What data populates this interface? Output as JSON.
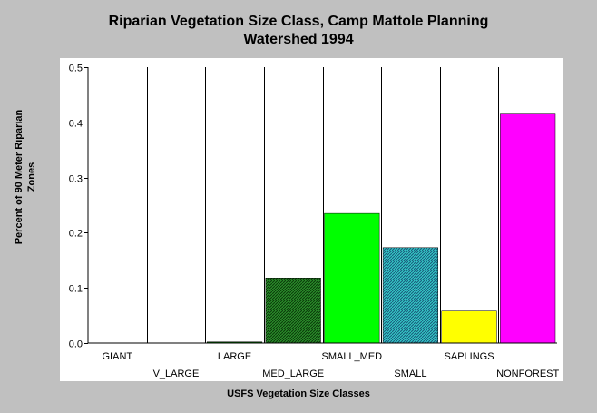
{
  "chart_data": {
    "type": "bar",
    "title": [
      "Riparian Vegetation Size Class, Camp Mattole Planning",
      "Watershed 1994"
    ],
    "ylabel": [
      "Percent of 90 Meter Riparian",
      "Zones"
    ],
    "xlabel": "USFS Vegetation Size Classes",
    "ylim": [
      0,
      0.5
    ],
    "yticks": [
      "0.0",
      "0.1",
      "0.2",
      "0.3",
      "0.4",
      "0.5"
    ],
    "categories": [
      "GIANT",
      "V_LARGE",
      "LARGE",
      "MED_LARGE",
      "SMALL_MED",
      "SMALL",
      "SAPLINGS",
      "NONFOREST"
    ],
    "values": [
      0,
      0,
      0.002,
      0.118,
      0.235,
      0.173,
      0.058,
      0.415
    ],
    "colors": [
      "#000000",
      "#000000",
      "#006400",
      "#1e7b1e",
      "#00ff00",
      "#2ab3b3",
      "#ffff00",
      "#ff00ff"
    ],
    "patterns": [
      "solid",
      "solid",
      "solid",
      "hatch",
      "solid",
      "hatch",
      "solid",
      "solid"
    ],
    "grid": "vertical-category-separators",
    "legend": "none"
  }
}
